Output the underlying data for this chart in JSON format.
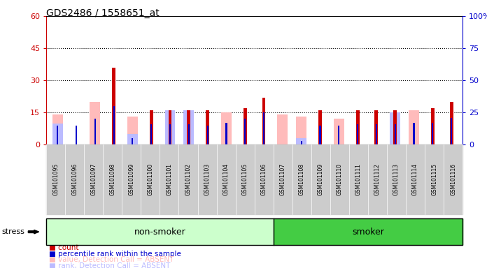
{
  "title": "GDS2486 / 1558651_at",
  "samples": [
    "GSM101095",
    "GSM101096",
    "GSM101097",
    "GSM101098",
    "GSM101099",
    "GSM101100",
    "GSM101101",
    "GSM101102",
    "GSM101103",
    "GSM101104",
    "GSM101105",
    "GSM101106",
    "GSM101107",
    "GSM101108",
    "GSM101109",
    "GSM101110",
    "GSM101111",
    "GSM101112",
    "GSM101113",
    "GSM101114",
    "GSM101115",
    "GSM101116"
  ],
  "count_red": [
    0,
    0,
    0,
    36,
    0,
    16,
    16,
    16,
    16,
    0,
    17,
    22,
    0,
    0,
    16,
    0,
    16,
    16,
    16,
    0,
    17,
    20
  ],
  "pct_blue": [
    15,
    15,
    20,
    30,
    5,
    16,
    16,
    16,
    15,
    17,
    20,
    25,
    0,
    3,
    15,
    15,
    16,
    16,
    16,
    17,
    17,
    21
  ],
  "absent_value_pink": [
    14,
    0,
    20,
    0,
    13,
    0,
    16,
    16,
    0,
    15,
    0,
    0,
    14,
    13,
    0,
    12,
    0,
    0,
    15,
    16,
    0,
    0
  ],
  "absent_rank_lightblue": [
    10,
    0,
    0,
    0,
    5,
    0,
    16,
    16,
    0,
    0,
    0,
    0,
    0,
    3,
    0,
    0,
    0,
    0,
    15,
    0,
    0,
    0
  ],
  "non_smoker_count": 12,
  "smoker_count": 10,
  "ylim_left": [
    0,
    60
  ],
  "ylim_right": [
    0,
    100
  ],
  "yticks_left": [
    0,
    15,
    30,
    45,
    60
  ],
  "yticks_right": [
    0,
    25,
    50,
    75,
    100
  ],
  "ytick_labels_right": [
    "0",
    "25",
    "50",
    "75",
    "100%"
  ],
  "color_red": "#cc0000",
  "color_blue": "#0000cc",
  "color_pink": "#ffbbbb",
  "color_lightblue": "#bbbbff",
  "color_nonsmoker_light": "#ccffcc",
  "color_nonsmoker_dark": "#66dd66",
  "color_smoker": "#44cc44",
  "bg_plot": "#ffffff",
  "bg_label": "#cccccc"
}
